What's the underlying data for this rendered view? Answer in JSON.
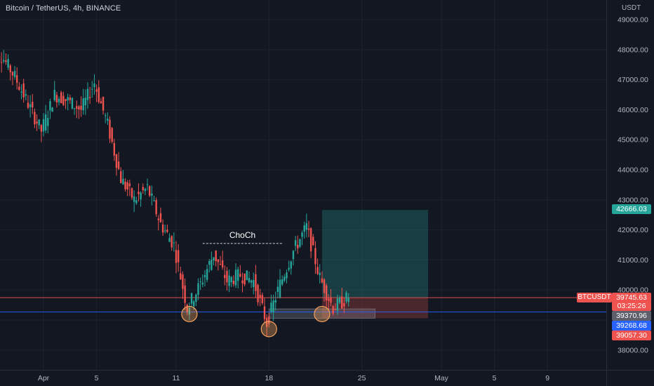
{
  "header": {
    "symbol_title": "Bitcoin / TetherUS, 4h, BINANCE",
    "currency": "USDT"
  },
  "annotations": {
    "choch_label": "ChoCh"
  },
  "price_boxes": {
    "target_price": "42666.03",
    "ticker": "BTCUSDT",
    "last_price": "39745.63",
    "countdown": "03:25:26",
    "price_a": "39370.96",
    "price_b": "39268.68",
    "stop_price": "39057.30"
  },
  "colors": {
    "background": "#131722",
    "up_candle": "#26a69a",
    "down_candle": "#ef5350",
    "target_zone": "#26a69a",
    "stop_zone": "#ef5350",
    "blue_line": "#2962ff",
    "circle_marker": "#f7a35c"
  },
  "chart_data": {
    "type": "candlestick",
    "title": "Bitcoin / TetherUS, 4h, BINANCE",
    "y_axis_ticks": [
      "49000.00",
      "48000.00",
      "47000.00",
      "46000.00",
      "45000.00",
      "44000.00",
      "43000.00",
      "42000.00",
      "41000.00",
      "40000.00",
      "39000.00",
      "38000.00"
    ],
    "ylim": [
      37600,
      49400
    ],
    "x_axis_ticks": [
      "Apr",
      "5",
      "11",
      "18",
      "25",
      "May",
      "5",
      "9"
    ],
    "x_dates": [
      "2022-04-01",
      "2022-04-05",
      "2022-04-11",
      "2022-04-18",
      "2022-04-25",
      "2022-05-01",
      "2022-05-05",
      "2022-05-09"
    ],
    "price_path": [
      {
        "date": "2022-03-28",
        "price": 47500
      },
      {
        "date": "2022-03-29",
        "price": 47800
      },
      {
        "date": "2022-03-30",
        "price": 47100
      },
      {
        "date": "2022-03-31",
        "price": 46200
      },
      {
        "date": "2022-04-01",
        "price": 45300
      },
      {
        "date": "2022-04-02",
        "price": 46500
      },
      {
        "date": "2022-04-03",
        "price": 46300
      },
      {
        "date": "2022-04-04",
        "price": 46000
      },
      {
        "date": "2022-04-05",
        "price": 46900
      },
      {
        "date": "2022-04-06",
        "price": 45500
      },
      {
        "date": "2022-04-07",
        "price": 43700
      },
      {
        "date": "2022-04-08",
        "price": 43000
      },
      {
        "date": "2022-04-09",
        "price": 43400
      },
      {
        "date": "2022-04-10",
        "price": 42200
      },
      {
        "date": "2022-04-11",
        "price": 41500
      },
      {
        "date": "2022-04-12",
        "price": 39400
      },
      {
        "date": "2022-04-13",
        "price": 40200
      },
      {
        "date": "2022-04-14",
        "price": 41200
      },
      {
        "date": "2022-04-15",
        "price": 40300
      },
      {
        "date": "2022-04-16",
        "price": 40500
      },
      {
        "date": "2022-04-17",
        "price": 40300
      },
      {
        "date": "2022-04-18",
        "price": 38900
      },
      {
        "date": "2022-04-19",
        "price": 40200
      },
      {
        "date": "2022-04-20",
        "price": 41300
      },
      {
        "date": "2022-04-21",
        "price": 42100
      },
      {
        "date": "2022-04-22",
        "price": 40400
      },
      {
        "date": "2022-04-23",
        "price": 39400
      },
      {
        "date": "2022-04-24",
        "price": 39700
      }
    ],
    "candle_seed": 7,
    "markers": [
      {
        "type": "circle",
        "date": "2022-04-12",
        "price": 39200
      },
      {
        "type": "circle",
        "date": "2022-04-18",
        "price": 38700
      },
      {
        "type": "circle",
        "date": "2022-04-22",
        "price": 39200
      }
    ],
    "choch_line": {
      "start_date": "2022-04-13",
      "end_date": "2022-04-19",
      "price": 41550
    },
    "position_tool": {
      "start_date": "2022-04-22",
      "end_date": "2022-04-30",
      "entry": 39745.63,
      "target": 42666.03,
      "stop": 39057.3
    },
    "horizontal_lines": [
      {
        "price": 39268.68,
        "color": "#2962ff"
      },
      {
        "price": 39745.63,
        "color": "#ef5350"
      }
    ]
  }
}
